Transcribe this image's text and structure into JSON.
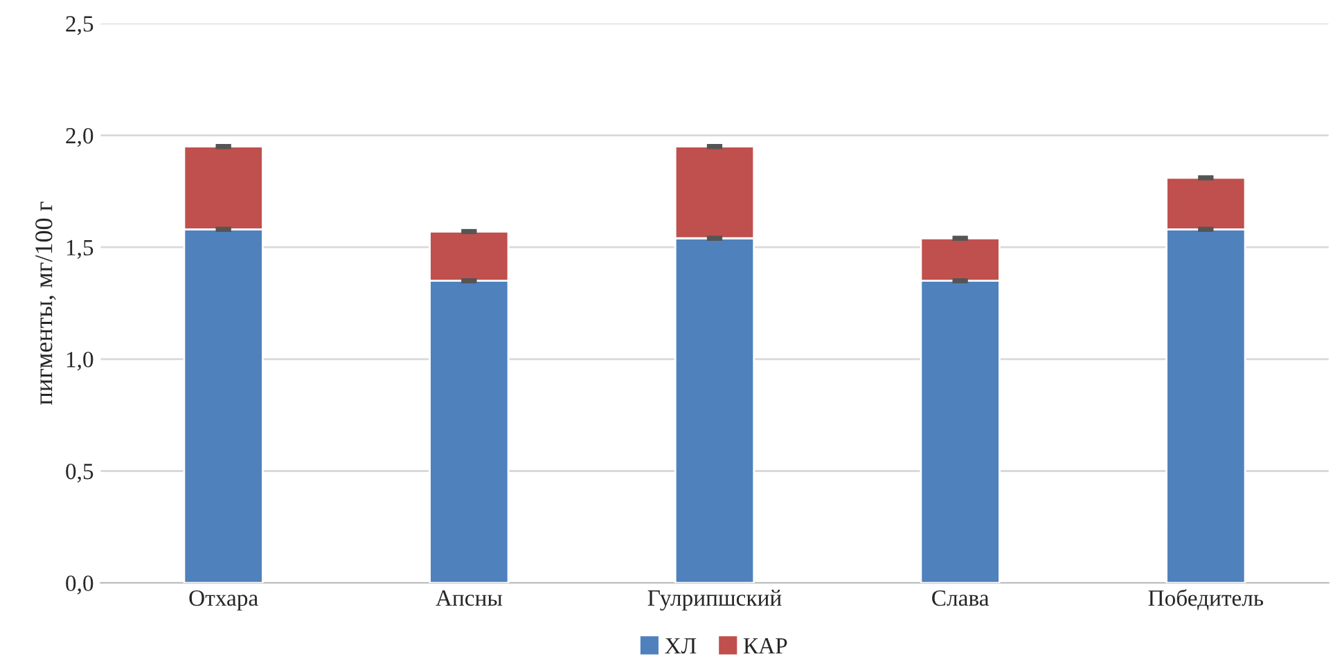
{
  "chart_data": {
    "type": "bar",
    "stacked": true,
    "ylabel": "пигменты, мг/100 г",
    "categories": [
      "Отхара",
      "Апсны",
      "Гулрипшский",
      "Слава",
      "Победитель"
    ],
    "series": [
      {
        "name": "ХЛ",
        "color": "#4f81bd",
        "values": [
          1.58,
          1.35,
          1.54,
          1.35,
          1.58
        ],
        "errors": [
          0.005,
          0.005,
          0.005,
          0.005,
          0.005
        ]
      },
      {
        "name": "КАР",
        "color": "#c0504d",
        "values": [
          0.37,
          0.22,
          0.41,
          0.19,
          0.23
        ],
        "errors": [
          0.005,
          0.005,
          0.005,
          0.005,
          0.005
        ]
      }
    ],
    "ylim": [
      0,
      2.5
    ],
    "yticks": [
      {
        "value": 0,
        "label": "0,0"
      },
      {
        "value": 0.5,
        "label": "0,5"
      },
      {
        "value": 1.0,
        "label": "1,0"
      },
      {
        "value": 1.5,
        "label": "1,5"
      },
      {
        "value": 2.0,
        "label": "2,0"
      },
      {
        "value": 2.5,
        "label": "2,5"
      }
    ],
    "grid": "y",
    "legend": "bottom"
  }
}
